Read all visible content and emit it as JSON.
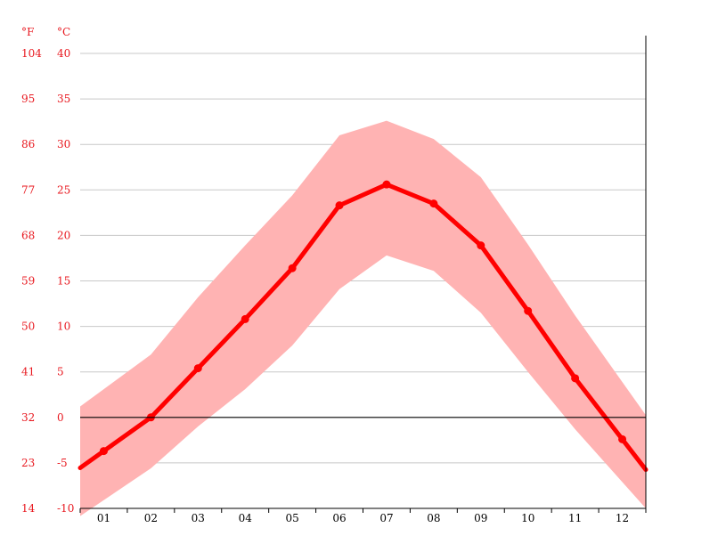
{
  "chart_data": {
    "type": "line",
    "units": {
      "fahrenheit": "°F",
      "celsius": "°C"
    },
    "categories": [
      "01",
      "02",
      "03",
      "04",
      "05",
      "06",
      "07",
      "08",
      "09",
      "10",
      "11",
      "12"
    ],
    "series": [
      {
        "values": [
          -3.7,
          0.0,
          5.4,
          10.8,
          16.4,
          23.3,
          25.6,
          23.5,
          18.9,
          11.7,
          4.3,
          -2.4
        ]
      }
    ],
    "range_band": {
      "upper": [
        3.1,
        6.9,
        13.2,
        18.9,
        24.4,
        31.0,
        32.6,
        30.6,
        26.4,
        19.0,
        11.2,
        3.9
      ],
      "lower": [
        -9.1,
        -5.6,
        -1.0,
        3.1,
        7.9,
        14.1,
        17.8,
        16.1,
        11.5,
        5.0,
        -1.3,
        -7.1
      ]
    },
    "y_ticks_celsius": [
      40,
      35,
      30,
      25,
      20,
      15,
      10,
      5,
      0,
      -5,
      -10
    ],
    "y_ticks_fahrenheit": [
      104,
      95,
      86,
      77,
      68,
      59,
      50,
      41,
      32,
      23,
      14
    ],
    "ylim": [
      -10,
      40
    ],
    "grid": true,
    "colors": {
      "line": "#ff0000",
      "band": "#ffb3b3",
      "ticks": "#e8181f",
      "grid": "#c8c8c8",
      "zero_line": "#000000"
    }
  }
}
